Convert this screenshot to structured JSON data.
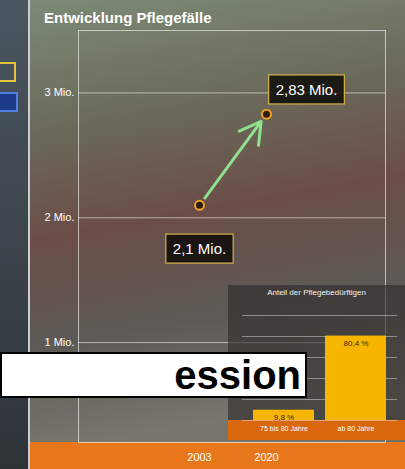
{
  "overlay_text": "ession",
  "chart_data": [
    {
      "type": "line",
      "title": "Entwicklung Pflegefälle",
      "categories": [
        "2003",
        "2020"
      ],
      "values": [
        2.1,
        2.83
      ],
      "value_labels": [
        "2,1 Mio.",
        "2,83 Mio."
      ],
      "data_labels": true,
      "color": "#8fe08f",
      "marker": "circle",
      "line_style": "arrow",
      "ylim": [
        0.2,
        3.5
      ],
      "yticks": [
        {
          "value": 1,
          "label": "1 Mio."
        },
        {
          "value": 2,
          "label": "2 Mio."
        },
        {
          "value": 3,
          "label": "3 Mio."
        }
      ],
      "grid": true
    },
    {
      "type": "bar",
      "title": "Anteil der Pflegebedürftigen",
      "categories": [
        "75 bis 80 Jahre",
        "ab 80 Jahre"
      ],
      "values": [
        9.8,
        80.4
      ],
      "value_labels": [
        "9,8 %",
        "80,4 %"
      ],
      "data_labels": true,
      "color": "#f7b500",
      "ylim": [
        0,
        100
      ],
      "yticks": [
        0,
        20,
        40,
        60,
        80,
        100
      ],
      "tick_labels": "x",
      "grid": true
    }
  ]
}
